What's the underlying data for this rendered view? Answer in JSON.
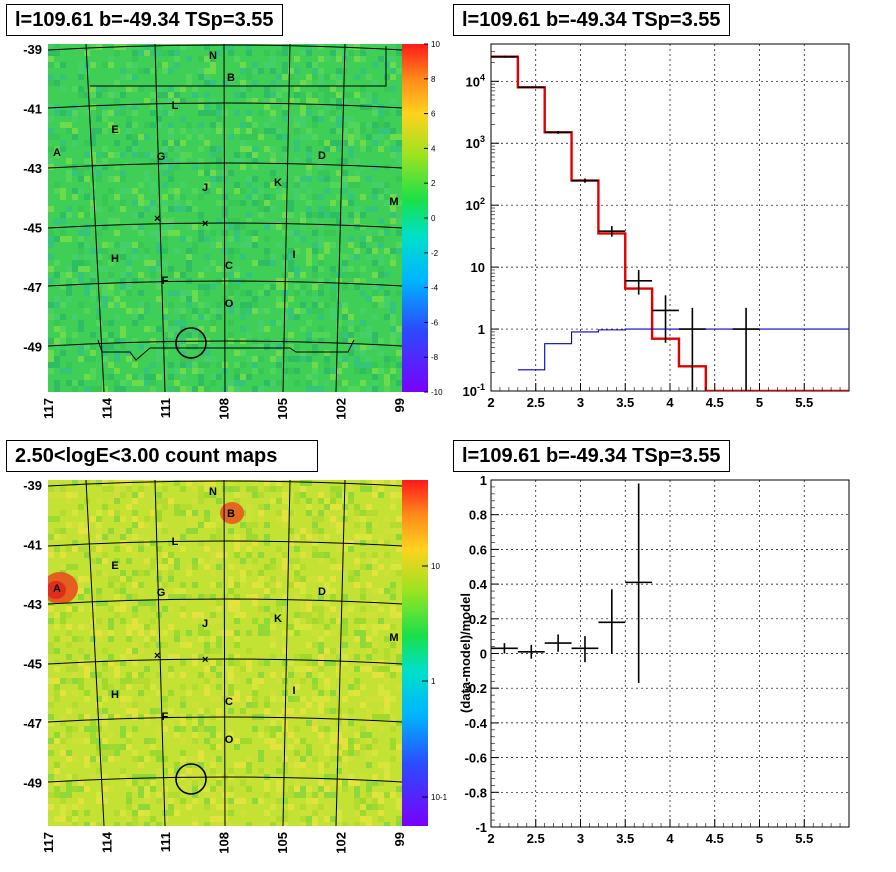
{
  "titles": {
    "map_tl": "l=109.61 b=-49.34 TSp=3.55",
    "spec_tr": "l=109.61 b=-49.34 TSp=3.55",
    "map_bl": "2.50<logE<3.00 count maps",
    "resid_br": "l=109.61 b=-49.34 TSp=3.55"
  },
  "sky_labels": [
    "N",
    "B",
    "L",
    "E",
    "A",
    "G",
    "D",
    "J",
    "K",
    "M",
    "H",
    "C",
    "I",
    "F",
    "O"
  ],
  "map_axes": {
    "lat_ticks": [
      "-39",
      "-41",
      "-43",
      "-45",
      "-47",
      "-49"
    ],
    "lon_ticks": [
      "117",
      "114",
      "111",
      "108",
      "105",
      "102",
      "99"
    ]
  },
  "colorbar_top": {
    "scale": "linear",
    "ticks": [
      "10",
      "8",
      "6",
      "4",
      "2",
      "0",
      "-2",
      "-4",
      "-6",
      "-8",
      "-10"
    ]
  },
  "colorbar_bottom": {
    "scale": "log",
    "ticks": [
      "10",
      "1",
      "10-1"
    ]
  },
  "colors": {
    "map_top_bg": "#3fcf57",
    "map_bottom_bg": "#c4e234",
    "model_line": "#e00000",
    "bkg_line": "#0000cc",
    "data_color": "#000000"
  },
  "chart_data": [
    {
      "type": "line",
      "title": "l=109.61 b=-49.34 TSp=3.55",
      "xlabel": "",
      "ylabel": "",
      "xlim": [
        2,
        6
      ],
      "ylim": [
        0.1,
        40000
      ],
      "y_scale": "log",
      "x_ticks": [
        "2",
        "2.5",
        "3",
        "3.5",
        "4",
        "4.5",
        "5",
        "5.5"
      ],
      "y_ticks": [
        "10-1",
        "1",
        "10",
        "10^2",
        "10^3",
        "10^4"
      ],
      "grid": true,
      "series": [
        {
          "style": "step",
          "color": "#e00000",
          "bins": [
            2.0,
            2.3,
            2.6,
            2.9,
            3.2,
            3.5,
            3.8,
            4.1,
            4.4,
            6.0
          ],
          "values": [
            25000,
            8000,
            1500,
            250,
            35,
            4.5,
            0.7,
            0.25,
            0.1
          ]
        },
        {
          "style": "step",
          "color": "#0000cc",
          "bins": [
            2.3,
            2.6,
            2.9,
            3.2,
            3.5,
            3.8,
            4.1,
            4.4,
            6.0
          ],
          "values": [
            0.22,
            0.58,
            0.9,
            0.97,
            1.0,
            1.0,
            1.0,
            1.0
          ]
        },
        {
          "style": "errorbar",
          "color": "#000000",
          "points": [
            {
              "x": 2.15,
              "y": 25000,
              "xerr": 0.15,
              "ylo": 24000,
              "yhi": 26000
            },
            {
              "x": 2.45,
              "y": 8000,
              "xerr": 0.15,
              "ylo": 7800,
              "yhi": 8200
            },
            {
              "x": 2.75,
              "y": 1500,
              "xerr": 0.15,
              "ylo": 1420,
              "yhi": 1580
            },
            {
              "x": 3.05,
              "y": 250,
              "xerr": 0.15,
              "ylo": 230,
              "yhi": 270
            },
            {
              "x": 3.35,
              "y": 38,
              "xerr": 0.15,
              "ylo": 31,
              "yhi": 46
            },
            {
              "x": 3.65,
              "y": 6,
              "xerr": 0.15,
              "ylo": 3.6,
              "yhi": 9
            },
            {
              "x": 3.95,
              "y": 2,
              "xerr": 0.15,
              "ylo": 0.6,
              "yhi": 3.5
            },
            {
              "x": 4.25,
              "y": 1,
              "xerr": 0.15,
              "ylo": 0.1,
              "yhi": 2.2
            },
            {
              "x": 4.85,
              "y": 1,
              "xerr": 0.15,
              "ylo": 0.1,
              "yhi": 2.2
            }
          ]
        }
      ]
    },
    {
      "type": "scatter",
      "title": "l=109.61 b=-49.34 TSp=3.55",
      "xlabel": "",
      "ylabel": "(data-model)/model",
      "xlim": [
        2,
        6
      ],
      "ylim": [
        -1,
        1
      ],
      "x_ticks": [
        "2",
        "2.5",
        "3",
        "3.5",
        "4",
        "4.5",
        "5",
        "5.5"
      ],
      "y_ticks": [
        "-1",
        "-0.8",
        "-0.6",
        "-0.4",
        "-0.2",
        "0",
        "0.2",
        "0.4",
        "0.6",
        "0.8",
        "1"
      ],
      "grid": true,
      "series": [
        {
          "style": "errorbar",
          "color": "#000000",
          "points": [
            {
              "x": 2.15,
              "y": 0.03,
              "xerr": 0.15,
              "ylo": 0.0,
              "yhi": 0.06
            },
            {
              "x": 2.45,
              "y": 0.01,
              "xerr": 0.15,
              "ylo": -0.03,
              "yhi": 0.05
            },
            {
              "x": 2.75,
              "y": 0.06,
              "xerr": 0.15,
              "ylo": 0.01,
              "yhi": 0.11
            },
            {
              "x": 3.05,
              "y": 0.03,
              "xerr": 0.15,
              "ylo": -0.05,
              "yhi": 0.1
            },
            {
              "x": 3.35,
              "y": 0.18,
              "xerr": 0.15,
              "ylo": 0.0,
              "yhi": 0.37
            },
            {
              "x": 3.65,
              "y": 0.41,
              "xerr": 0.15,
              "ylo": -0.17,
              "yhi": 0.98
            }
          ]
        }
      ]
    }
  ]
}
